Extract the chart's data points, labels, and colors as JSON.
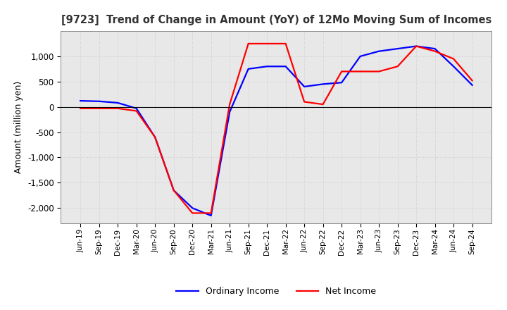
{
  "title": "[9723]  Trend of Change in Amount (YoY) of 12Mo Moving Sum of Incomes",
  "ylabel": "Amount (million yen)",
  "x_labels": [
    "Jun-19",
    "Sep-19",
    "Dec-19",
    "Mar-20",
    "Jun-20",
    "Sep-20",
    "Dec-20",
    "Mar-21",
    "Jun-21",
    "Sep-21",
    "Dec-21",
    "Mar-22",
    "Jun-22",
    "Sep-22",
    "Dec-22",
    "Mar-23",
    "Jun-23",
    "Sep-23",
    "Dec-23",
    "Mar-24",
    "Jun-24",
    "Sep-24"
  ],
  "ordinary_income": [
    120,
    110,
    80,
    -30,
    -600,
    -1650,
    -2000,
    -2150,
    -100,
    750,
    800,
    800,
    400,
    450,
    480,
    1000,
    1100,
    1150,
    1200,
    1150,
    800,
    430
  ],
  "net_income": [
    -30,
    -30,
    -30,
    -80,
    -600,
    -1650,
    -2100,
    -2100,
    50,
    1250,
    1250,
    1250,
    100,
    50,
    700,
    700,
    700,
    800,
    1200,
    1100,
    950,
    520
  ],
  "ordinary_color": "#0000ff",
  "net_color": "#ff0000",
  "ylim": [
    -2300,
    1500
  ],
  "yticks": [
    -2000,
    -1500,
    -1000,
    -500,
    0,
    500,
    1000
  ],
  "grid_color": "#c8c8c8",
  "background_color": "#e8e8e8",
  "line_width": 1.6
}
